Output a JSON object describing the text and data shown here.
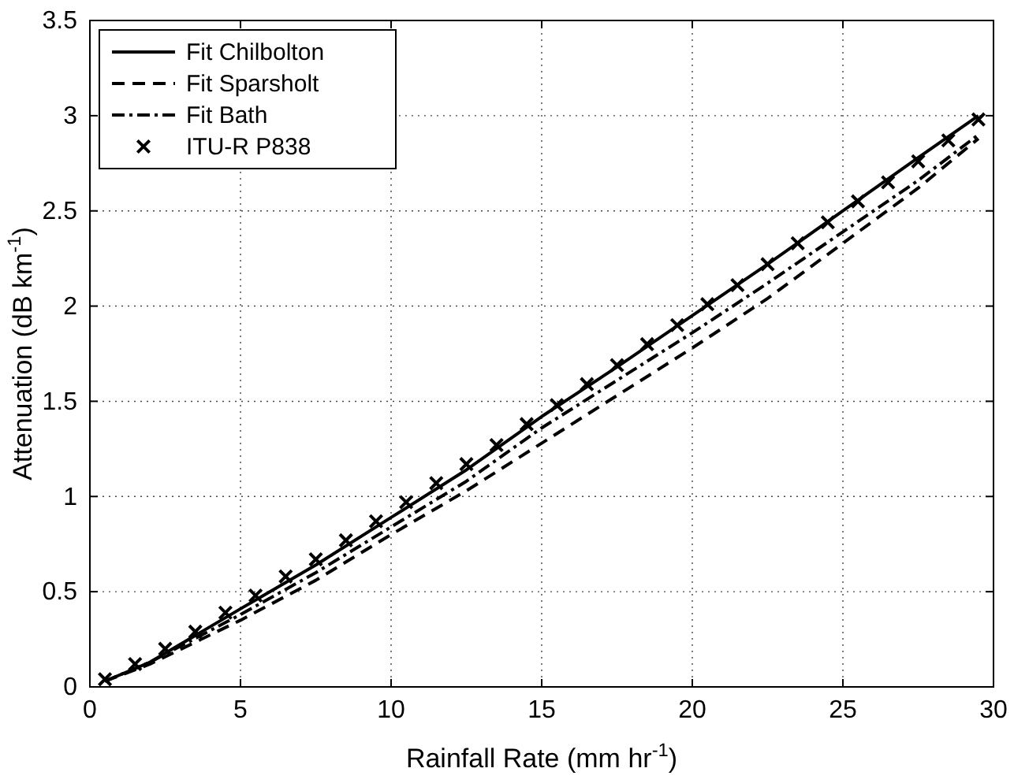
{
  "chart_data": {
    "type": "line",
    "xlabel": "Rainfall Rate (mm hr$^{-1}$)",
    "ylabel": "Attenuation (dB km$^{-1}$)",
    "xlim": [
      0,
      30
    ],
    "xticks": [
      0,
      5,
      10,
      15,
      20,
      25,
      30
    ],
    "ylim": [
      0,
      3.5
    ],
    "yticks": [
      0,
      0.5,
      1,
      1.5,
      2,
      2.5,
      3,
      3.5
    ],
    "grid": true,
    "legend": "top left",
    "series": [
      {
        "name": "Fit Chilbolton",
        "color": "#000000",
        "line_style": "solid",
        "marker": "none",
        "x": [
          0.5,
          2,
          5,
          7.5,
          10,
          12.5,
          15,
          17.5,
          20,
          22.5,
          25,
          27.5,
          29.5
        ],
        "values": [
          0.03,
          0.13,
          0.41,
          0.64,
          0.89,
          1.14,
          1.42,
          1.68,
          1.95,
          2.22,
          2.5,
          2.78,
          3.0
        ]
      },
      {
        "name": "Fit Sparsholt",
        "color": "#000000",
        "line_style": "dashed",
        "marker": "none",
        "x": [
          0.5,
          2,
          5,
          7.5,
          10,
          12.5,
          15,
          17.5,
          20,
          22.5,
          25,
          27.5,
          29.5
        ],
        "values": [
          0.03,
          0.12,
          0.35,
          0.56,
          0.8,
          1.03,
          1.28,
          1.53,
          1.78,
          2.04,
          2.33,
          2.62,
          2.88
        ]
      },
      {
        "name": "Fit Bath",
        "color": "#000000",
        "line_style": "dashdot",
        "marker": "none",
        "x": [
          0.5,
          2,
          5,
          7.5,
          10,
          12.5,
          15,
          17.5,
          20,
          22.5,
          25,
          27.5,
          29.5
        ],
        "values": [
          0.03,
          0.13,
          0.38,
          0.6,
          0.84,
          1.08,
          1.36,
          1.61,
          1.86,
          2.12,
          2.39,
          2.66,
          2.9
        ]
      },
      {
        "name": "ITU-R P838",
        "type": "scatter",
        "color": "#000000",
        "marker": "cross",
        "x": [
          0.5,
          1.5,
          2.5,
          3.5,
          4.5,
          5.5,
          6.5,
          7.5,
          8.5,
          9.5,
          10.5,
          11.5,
          12.5,
          13.5,
          14.5,
          15.5,
          16.5,
          17.5,
          18.5,
          19.5,
          20.5,
          21.5,
          22.5,
          23.5,
          24.5,
          25.5,
          26.5,
          27.5,
          28.5,
          29.5
        ],
        "values": [
          0.04,
          0.12,
          0.2,
          0.29,
          0.39,
          0.48,
          0.58,
          0.67,
          0.77,
          0.87,
          0.97,
          1.07,
          1.17,
          1.27,
          1.38,
          1.48,
          1.59,
          1.69,
          1.8,
          1.9,
          2.01,
          2.11,
          2.22,
          2.33,
          2.44,
          2.55,
          2.65,
          2.76,
          2.87,
          2.98
        ]
      }
    ]
  }
}
